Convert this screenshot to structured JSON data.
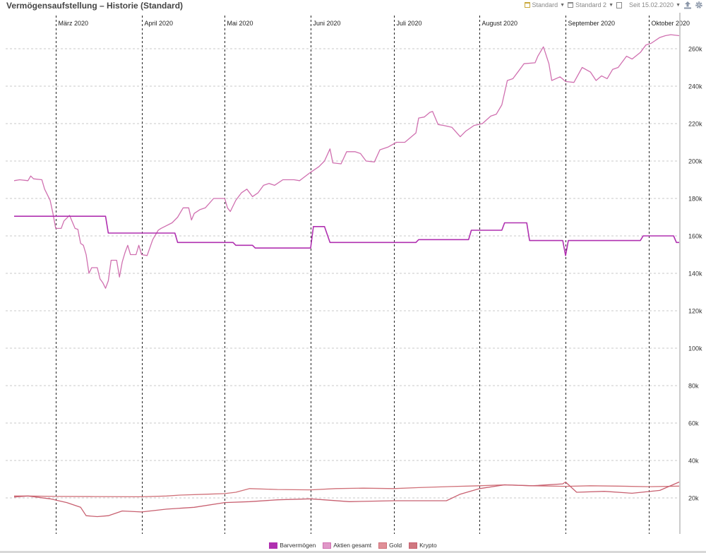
{
  "header": {
    "title": "Vermögensaufstellung – Historie (Standard)",
    "preset1_label": "Standard",
    "preset2_label": "Standard 2",
    "range_label": "Seit 15.02.2020"
  },
  "chart_data": {
    "type": "line",
    "title": "Vermögensaufstellung – Historie (Standard)",
    "xlabel": "",
    "ylabel": "",
    "ylim": [
      0,
      275000
    ],
    "y_ticks": [
      20000,
      40000,
      60000,
      80000,
      100000,
      120000,
      140000,
      160000,
      180000,
      200000,
      220000,
      240000,
      260000
    ],
    "y_tick_labels": [
      "20k",
      "40k",
      "60k",
      "80k",
      "100k",
      "120k",
      "140k",
      "160k",
      "180k",
      "200k",
      "220k",
      "240k",
      "260k"
    ],
    "x_range": [
      "2020-02-15",
      "2020-10-12"
    ],
    "month_markers": [
      {
        "date": "2020-03-01",
        "label": "März 2020"
      },
      {
        "date": "2020-04-01",
        "label": "April 2020"
      },
      {
        "date": "2020-05-01",
        "label": "Mai 2020"
      },
      {
        "date": "2020-06-01",
        "label": "Juni 2020"
      },
      {
        "date": "2020-07-01",
        "label": "Juli 2020"
      },
      {
        "date": "2020-08-01",
        "label": "August 2020"
      },
      {
        "date": "2020-09-01",
        "label": "September 2020"
      },
      {
        "date": "2020-10-01",
        "label": "Oktober 2020"
      }
    ],
    "grid": true,
    "legend_position": "bottom",
    "series": [
      {
        "name": "Barvermögen",
        "color": "#b030b0",
        "points": [
          [
            "2020-02-15",
            170500
          ],
          [
            "2020-03-19",
            170500
          ],
          [
            "2020-03-20",
            161500
          ],
          [
            "2020-04-13",
            161500
          ],
          [
            "2020-04-14",
            156500
          ],
          [
            "2020-05-04",
            156500
          ],
          [
            "2020-05-05",
            155000
          ],
          [
            "2020-05-11",
            155000
          ],
          [
            "2020-05-12",
            153500
          ],
          [
            "2020-06-01",
            153500
          ],
          [
            "2020-06-02",
            165000
          ],
          [
            "2020-06-06",
            165000
          ],
          [
            "2020-06-08",
            156500
          ],
          [
            "2020-07-09",
            156500
          ],
          [
            "2020-07-10",
            158000
          ],
          [
            "2020-07-28",
            158000
          ],
          [
            "2020-07-29",
            163000
          ],
          [
            "2020-08-09",
            163000
          ],
          [
            "2020-08-10",
            167000
          ],
          [
            "2020-08-18",
            167000
          ],
          [
            "2020-08-19",
            157500
          ],
          [
            "2020-08-31",
            157500
          ],
          [
            "2020-09-01",
            149500
          ],
          [
            "2020-09-02",
            157500
          ],
          [
            "2020-09-28",
            157500
          ],
          [
            "2020-09-29",
            160000
          ],
          [
            "2020-10-10",
            160000
          ],
          [
            "2020-10-11",
            156500
          ],
          [
            "2020-10-12",
            156500
          ]
        ]
      },
      {
        "name": "Aktien gesamt",
        "color": "#d070b0",
        "points": [
          [
            "2020-02-15",
            189500
          ],
          [
            "2020-02-17",
            190000
          ],
          [
            "2020-02-20",
            189500
          ],
          [
            "2020-02-21",
            192000
          ],
          [
            "2020-02-22",
            190500
          ],
          [
            "2020-02-25",
            190000
          ],
          [
            "2020-02-26",
            185000
          ],
          [
            "2020-02-28",
            179000
          ],
          [
            "2020-02-29",
            172000
          ],
          [
            "2020-03-01",
            164000
          ],
          [
            "2020-03-03",
            164000
          ],
          [
            "2020-03-04",
            168000
          ],
          [
            "2020-03-06",
            171000
          ],
          [
            "2020-03-08",
            164000
          ],
          [
            "2020-03-09",
            163500
          ],
          [
            "2020-03-10",
            156000
          ],
          [
            "2020-03-11",
            155000
          ],
          [
            "2020-03-12",
            150000
          ],
          [
            "2020-03-13",
            140000
          ],
          [
            "2020-03-14",
            143000
          ],
          [
            "2020-03-16",
            143000
          ],
          [
            "2020-03-17",
            137000
          ],
          [
            "2020-03-18",
            135000
          ],
          [
            "2020-03-19",
            132000
          ],
          [
            "2020-03-20",
            136000
          ],
          [
            "2020-03-21",
            147000
          ],
          [
            "2020-03-23",
            147000
          ],
          [
            "2020-03-24",
            138000
          ],
          [
            "2020-03-25",
            146000
          ],
          [
            "2020-03-26",
            151000
          ],
          [
            "2020-03-27",
            155000
          ],
          [
            "2020-03-28",
            150000
          ],
          [
            "2020-03-30",
            150000
          ],
          [
            "2020-03-31",
            155000
          ],
          [
            "2020-04-01",
            150000
          ],
          [
            "2020-04-03",
            149500
          ],
          [
            "2020-04-05",
            158000
          ],
          [
            "2020-04-07",
            163000
          ],
          [
            "2020-04-08",
            164000
          ],
          [
            "2020-04-12",
            167000
          ],
          [
            "2020-04-14",
            170000
          ],
          [
            "2020-04-16",
            175000
          ],
          [
            "2020-04-18",
            175000
          ],
          [
            "2020-04-19",
            168500
          ],
          [
            "2020-04-20",
            172000
          ],
          [
            "2020-04-22",
            174000
          ],
          [
            "2020-04-24",
            175000
          ],
          [
            "2020-04-27",
            180000
          ],
          [
            "2020-05-01",
            180000
          ],
          [
            "2020-05-02",
            175000
          ],
          [
            "2020-05-03",
            173000
          ],
          [
            "2020-05-05",
            179000
          ],
          [
            "2020-05-07",
            183000
          ],
          [
            "2020-05-09",
            185000
          ],
          [
            "2020-05-11",
            181000
          ],
          [
            "2020-05-13",
            183000
          ],
          [
            "2020-05-15",
            187000
          ],
          [
            "2020-05-17",
            188000
          ],
          [
            "2020-05-19",
            187000
          ],
          [
            "2020-05-22",
            190000
          ],
          [
            "2020-05-26",
            190000
          ],
          [
            "2020-05-28",
            189500
          ],
          [
            "2020-06-01",
            194000
          ],
          [
            "2020-06-04",
            197000
          ],
          [
            "2020-06-06",
            200000
          ],
          [
            "2020-06-08",
            206500
          ],
          [
            "2020-06-09",
            199000
          ],
          [
            "2020-06-12",
            198500
          ],
          [
            "2020-06-14",
            205000
          ],
          [
            "2020-06-17",
            205000
          ],
          [
            "2020-06-19",
            204000
          ],
          [
            "2020-06-21",
            200000
          ],
          [
            "2020-06-24",
            199500
          ],
          [
            "2020-06-26",
            206000
          ],
          [
            "2020-06-29",
            207500
          ],
          [
            "2020-07-02",
            210000
          ],
          [
            "2020-07-05",
            210000
          ],
          [
            "2020-07-09",
            215000
          ],
          [
            "2020-07-10",
            223000
          ],
          [
            "2020-07-12",
            223500
          ],
          [
            "2020-07-14",
            226000
          ],
          [
            "2020-07-15",
            226500
          ],
          [
            "2020-07-17",
            219500
          ],
          [
            "2020-07-19",
            219000
          ],
          [
            "2020-07-22",
            218000
          ],
          [
            "2020-07-25",
            213000
          ],
          [
            "2020-07-27",
            216000
          ],
          [
            "2020-07-30",
            219000
          ],
          [
            "2020-08-02",
            220000
          ],
          [
            "2020-08-05",
            224000
          ],
          [
            "2020-08-07",
            225000
          ],
          [
            "2020-08-09",
            230000
          ],
          [
            "2020-08-11",
            243000
          ],
          [
            "2020-08-13",
            244000
          ],
          [
            "2020-08-15",
            248000
          ],
          [
            "2020-08-17",
            252000
          ],
          [
            "2020-08-21",
            252500
          ],
          [
            "2020-08-22",
            256000
          ],
          [
            "2020-08-24",
            261000
          ],
          [
            "2020-08-26",
            252000
          ],
          [
            "2020-08-27",
            243000
          ],
          [
            "2020-08-30",
            245000
          ],
          [
            "2020-09-01",
            242500
          ],
          [
            "2020-09-04",
            242000
          ],
          [
            "2020-09-07",
            250000
          ],
          [
            "2020-09-10",
            247500
          ],
          [
            "2020-09-12",
            243000
          ],
          [
            "2020-09-14",
            245500
          ],
          [
            "2020-09-16",
            244000
          ],
          [
            "2020-09-18",
            249000
          ],
          [
            "2020-09-20",
            250000
          ],
          [
            "2020-09-23",
            256000
          ],
          [
            "2020-09-25",
            254500
          ],
          [
            "2020-09-28",
            258000
          ],
          [
            "2020-09-30",
            262000
          ],
          [
            "2020-10-02",
            263000
          ],
          [
            "2020-10-05",
            266000
          ],
          [
            "2020-10-07",
            267000
          ],
          [
            "2020-10-09",
            267500
          ],
          [
            "2020-10-12",
            267000
          ]
        ]
      },
      {
        "name": "Gold",
        "color": "#d07078",
        "points": [
          [
            "2020-02-15",
            21000
          ],
          [
            "2020-02-20",
            21000
          ],
          [
            "2020-03-01",
            20800
          ],
          [
            "2020-03-15",
            20700
          ],
          [
            "2020-04-01",
            20600
          ],
          [
            "2020-04-10",
            21000
          ],
          [
            "2020-04-15",
            21500
          ],
          [
            "2020-04-25",
            22000
          ],
          [
            "2020-05-01",
            22300
          ],
          [
            "2020-05-05",
            23000
          ],
          [
            "2020-05-10",
            25000
          ],
          [
            "2020-05-20",
            24500
          ],
          [
            "2020-06-01",
            24300
          ],
          [
            "2020-06-10",
            25000
          ],
          [
            "2020-06-20",
            25200
          ],
          [
            "2020-07-01",
            25000
          ],
          [
            "2020-07-10",
            25500
          ],
          [
            "2020-07-20",
            26000
          ],
          [
            "2020-08-01",
            26500
          ],
          [
            "2020-08-10",
            27000
          ],
          [
            "2020-08-20",
            26500
          ],
          [
            "2020-09-01",
            26200
          ],
          [
            "2020-09-10",
            26500
          ],
          [
            "2020-09-20",
            26300
          ],
          [
            "2020-10-01",
            26000
          ],
          [
            "2020-10-12",
            26300
          ]
        ]
      },
      {
        "name": "Krypto",
        "color": "#c86070",
        "points": [
          [
            "2020-02-15",
            20500
          ],
          [
            "2020-02-20",
            21000
          ],
          [
            "2020-02-28",
            19500
          ],
          [
            "2020-03-05",
            17500
          ],
          [
            "2020-03-10",
            15000
          ],
          [
            "2020-03-12",
            10500
          ],
          [
            "2020-03-16",
            10000
          ],
          [
            "2020-03-20",
            10500
          ],
          [
            "2020-03-25",
            13000
          ],
          [
            "2020-04-01",
            12500
          ],
          [
            "2020-04-10",
            14000
          ],
          [
            "2020-04-20",
            15000
          ],
          [
            "2020-05-01",
            17500
          ],
          [
            "2020-05-10",
            18000
          ],
          [
            "2020-05-20",
            19000
          ],
          [
            "2020-06-01",
            19500
          ],
          [
            "2020-06-15",
            18000
          ],
          [
            "2020-07-01",
            18500
          ],
          [
            "2020-07-20",
            18500
          ],
          [
            "2020-07-25",
            22000
          ],
          [
            "2020-08-01",
            25000
          ],
          [
            "2020-08-10",
            27000
          ],
          [
            "2020-08-20",
            26500
          ],
          [
            "2020-08-31",
            27500
          ],
          [
            "2020-09-01",
            28500
          ],
          [
            "2020-09-05",
            23000
          ],
          [
            "2020-09-15",
            23500
          ],
          [
            "2020-09-25",
            22500
          ],
          [
            "2020-10-05",
            24000
          ],
          [
            "2020-10-12",
            28500
          ]
        ]
      }
    ]
  }
}
